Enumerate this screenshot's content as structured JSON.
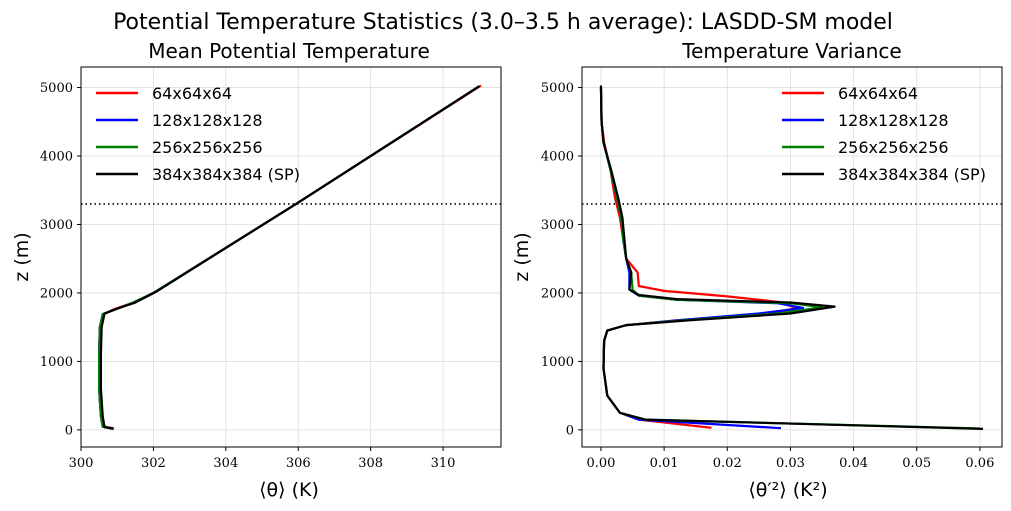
{
  "figure": {
    "suptitle": "Potential Temperature Statistics (3.0–3.5 h average): LASDD-SM model"
  },
  "chart_data": [
    {
      "type": "line",
      "title": "Mean Potential Temperature",
      "xlabel": "⟨θ⟩ (K)",
      "ylabel": "z (m)",
      "xlim": [
        300,
        311.6
      ],
      "ylim": [
        -250,
        5300
      ],
      "xticks": [
        300,
        302,
        304,
        306,
        308,
        310
      ],
      "xtick_labels": [
        "300",
        "302",
        "304",
        "306",
        "308",
        "310"
      ],
      "yticks": [
        0,
        1000,
        2000,
        3000,
        4000,
        5000
      ],
      "ytick_labels": [
        "0",
        "1000",
        "2000",
        "3000",
        "4000",
        "5000"
      ],
      "grid": true,
      "legend_position": "top-left",
      "reference_line": {
        "y": 3300,
        "style": "dotted"
      },
      "series": [
        {
          "name": "64x64x64",
          "color": "#ff0000",
          "points": [
            [
              300.9,
              25
            ],
            [
              300.6,
              50
            ],
            [
              300.55,
              200
            ],
            [
              300.5,
              600
            ],
            [
              300.5,
              1100
            ],
            [
              300.52,
              1500
            ],
            [
              300.6,
              1680
            ],
            [
              300.9,
              1760
            ],
            [
              301.5,
              1870
            ],
            [
              302.1,
              2030
            ],
            [
              306,
              3320
            ],
            [
              311.05,
              5030
            ]
          ]
        },
        {
          "name": "128x128x128",
          "color": "#0000ff",
          "points": [
            [
              300.9,
              20
            ],
            [
              300.6,
              45
            ],
            [
              300.55,
              200
            ],
            [
              300.5,
              600
            ],
            [
              300.5,
              1100
            ],
            [
              300.52,
              1500
            ],
            [
              300.6,
              1690
            ],
            [
              300.95,
              1760
            ],
            [
              301.4,
              1850
            ],
            [
              302.0,
              2000
            ],
            [
              306,
              3320
            ],
            [
              311.0,
              5020
            ]
          ]
        },
        {
          "name": "256x256x256",
          "color": "#008000",
          "points": [
            [
              300.9,
              20
            ],
            [
              300.6,
              45
            ],
            [
              300.55,
              200
            ],
            [
              300.5,
              600
            ],
            [
              300.5,
              1100
            ],
            [
              300.52,
              1500
            ],
            [
              300.6,
              1690
            ],
            [
              300.95,
              1760
            ],
            [
              301.4,
              1850
            ],
            [
              302.0,
              2000
            ],
            [
              306,
              3320
            ],
            [
              311.0,
              5020
            ]
          ]
        },
        {
          "name": "384x384x384 (SP)",
          "color": "#000000",
          "points": [
            [
              300.9,
              15
            ],
            [
              300.65,
              40
            ],
            [
              300.6,
              200
            ],
            [
              300.55,
              600
            ],
            [
              300.55,
              1100
            ],
            [
              300.57,
              1500
            ],
            [
              300.65,
              1700
            ],
            [
              301.0,
              1770
            ],
            [
              301.5,
              1860
            ],
            [
              302.05,
              2010
            ],
            [
              306,
              3320
            ],
            [
              311.0,
              5020
            ]
          ]
        }
      ]
    },
    {
      "type": "line",
      "title": "Temperature Variance",
      "xlabel": "⟨θ′²⟩ (K²)",
      "ylabel": "z (m)",
      "xlim": [
        -0.003,
        0.0635
      ],
      "ylim": [
        -250,
        5300
      ],
      "xticks": [
        0.0,
        0.01,
        0.02,
        0.03,
        0.04,
        0.05,
        0.06
      ],
      "xtick_labels": [
        "0.00",
        "0.01",
        "0.02",
        "0.03",
        "0.04",
        "0.05",
        "0.06"
      ],
      "yticks": [
        0,
        1000,
        2000,
        3000,
        4000,
        5000
      ],
      "ytick_labels": [
        "0",
        "1000",
        "2000",
        "3000",
        "4000",
        "5000"
      ],
      "grid": true,
      "legend_position": "top-right",
      "reference_line": {
        "y": 3300,
        "style": "dotted"
      },
      "series": [
        {
          "name": "64x64x64",
          "color": "#ff0000",
          "points": [
            [
              0.0175,
              30
            ],
            [
              0.006,
              150
            ],
            [
              0.003,
              250
            ],
            [
              0.001,
              500
            ],
            [
              0.0004,
              900
            ],
            [
              0.0005,
              1300
            ],
            [
              0.001,
              1450
            ],
            [
              0.004,
              1530
            ],
            [
              0.012,
              1600
            ],
            [
              0.027,
              1700
            ],
            [
              0.031,
              1780
            ],
            [
              0.028,
              1870
            ],
            [
              0.02,
              1950
            ],
            [
              0.01,
              2030
            ],
            [
              0.006,
              2100
            ],
            [
              0.0058,
              2300
            ],
            [
              0.004,
              2500
            ],
            [
              0.0035,
              2800
            ],
            [
              0.003,
              3100
            ],
            [
              0.0022,
              3400
            ],
            [
              0.0015,
              3800
            ],
            [
              0.0005,
              4200
            ],
            [
              0.0001,
              4500
            ],
            [
              0.0,
              5000
            ]
          ]
        },
        {
          "name": "128x128x128",
          "color": "#0000ff",
          "points": [
            [
              0.0285,
              25
            ],
            [
              0.006,
              150
            ],
            [
              0.003,
              250
            ],
            [
              0.001,
              500
            ],
            [
              0.0004,
              900
            ],
            [
              0.0005,
              1300
            ],
            [
              0.001,
              1450
            ],
            [
              0.004,
              1530
            ],
            [
              0.012,
              1600
            ],
            [
              0.025,
              1700
            ],
            [
              0.032,
              1780
            ],
            [
              0.028,
              1850
            ],
            [
              0.012,
              1900
            ],
            [
              0.006,
              1960
            ],
            [
              0.0045,
              2050
            ],
            [
              0.0045,
              2300
            ],
            [
              0.004,
              2500
            ],
            [
              0.0035,
              2800
            ],
            [
              0.0032,
              3100
            ],
            [
              0.0025,
              3400
            ],
            [
              0.0015,
              3800
            ],
            [
              0.0004,
              4200
            ],
            [
              0.0001,
              4500
            ],
            [
              0.0,
              5000
            ]
          ]
        },
        {
          "name": "256x256x256",
          "color": "#008000",
          "points": [
            [
              0.06,
              20
            ],
            [
              0.007,
              150
            ],
            [
              0.003,
              250
            ],
            [
              0.001,
              500
            ],
            [
              0.0004,
              900
            ],
            [
              0.0005,
              1300
            ],
            [
              0.001,
              1450
            ],
            [
              0.004,
              1530
            ],
            [
              0.013,
              1600
            ],
            [
              0.028,
              1700
            ],
            [
              0.035,
              1790
            ],
            [
              0.03,
              1850
            ],
            [
              0.012,
              1900
            ],
            [
              0.006,
              1960
            ],
            [
              0.005,
              2050
            ],
            [
              0.0048,
              2300
            ],
            [
              0.004,
              2500
            ],
            [
              0.0035,
              2800
            ],
            [
              0.0032,
              3100
            ],
            [
              0.0025,
              3400
            ],
            [
              0.0015,
              3800
            ],
            [
              0.0004,
              4200
            ],
            [
              0.0001,
              4500
            ],
            [
              0.0,
              5000
            ]
          ]
        },
        {
          "name": "384x384x384 (SP)",
          "color": "#000000",
          "points": [
            [
              0.0605,
              15
            ],
            [
              0.007,
              150
            ],
            [
              0.003,
              250
            ],
            [
              0.001,
              500
            ],
            [
              0.0004,
              900
            ],
            [
              0.0005,
              1300
            ],
            [
              0.001,
              1450
            ],
            [
              0.004,
              1530
            ],
            [
              0.014,
              1600
            ],
            [
              0.03,
              1700
            ],
            [
              0.037,
              1800
            ],
            [
              0.03,
              1860
            ],
            [
              0.012,
              1910
            ],
            [
              0.006,
              1970
            ],
            [
              0.0045,
              2050
            ],
            [
              0.0048,
              2300
            ],
            [
              0.004,
              2500
            ],
            [
              0.0037,
              2800
            ],
            [
              0.0034,
              3100
            ],
            [
              0.0027,
              3400
            ],
            [
              0.0016,
              3800
            ],
            [
              0.0004,
              4200
            ],
            [
              0.0001,
              4500
            ],
            [
              0.0,
              5030
            ]
          ]
        }
      ]
    }
  ]
}
